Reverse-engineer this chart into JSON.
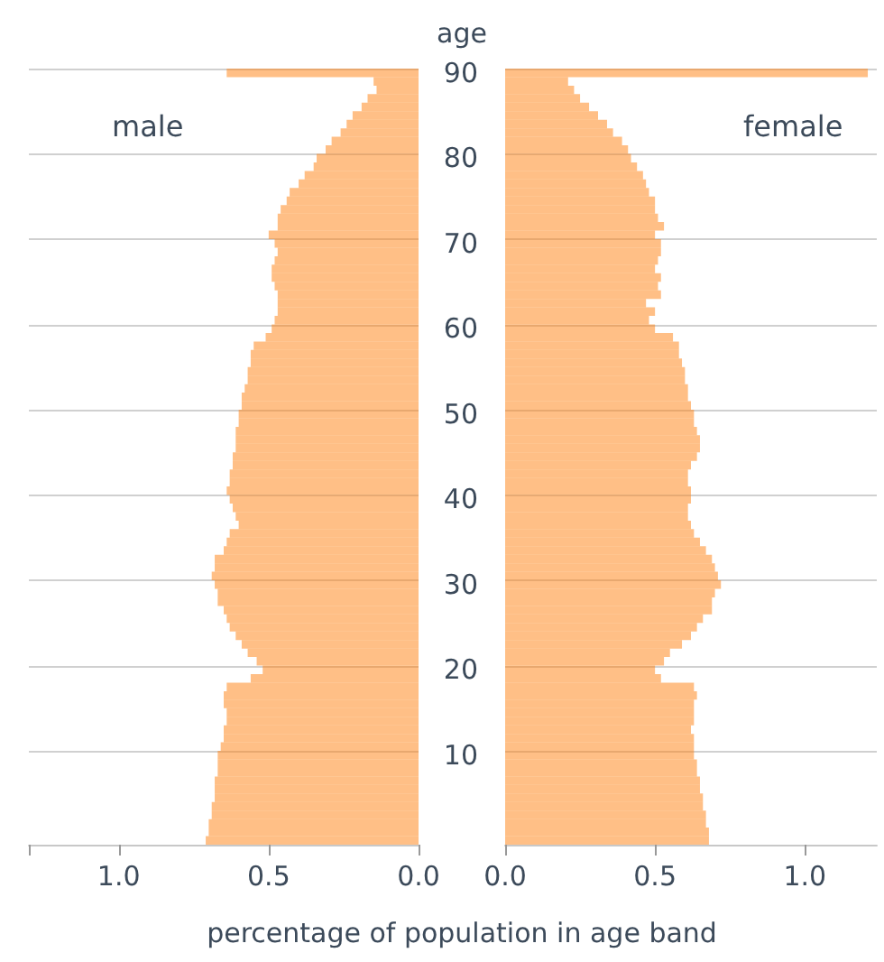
{
  "chart_data": [
    {
      "type": "bar",
      "orientation": "horizontal",
      "xlabel": "percentage of population in age band",
      "categories": [
        "90",
        null,
        null,
        null,
        null,
        null,
        null,
        null,
        null,
        null,
        "80",
        null,
        null,
        null,
        null,
        null,
        null,
        null,
        null,
        null,
        "70",
        null,
        null,
        null,
        null,
        null,
        null,
        null,
        null,
        null,
        "60",
        null,
        null,
        null,
        null,
        null,
        null,
        null,
        null,
        null,
        "50",
        null,
        null,
        null,
        null,
        null,
        null,
        null,
        null,
        null,
        "40",
        null,
        null,
        null,
        null,
        null,
        null,
        null,
        null,
        null,
        "30",
        null,
        null,
        null,
        null,
        null,
        null,
        null,
        null,
        null,
        "20",
        null,
        null,
        null,
        null,
        null,
        null,
        null,
        null,
        null,
        "10",
        null,
        null,
        null,
        null,
        null,
        null,
        null,
        null,
        null,
        null
      ],
      "series": [
        {
          "name": "male",
          "color": "#ff7f0e",
          "values": [
            0.64,
            0.15,
            0.14,
            0.17,
            0.19,
            0.22,
            0.24,
            0.26,
            0.29,
            0.31,
            0.34,
            0.35,
            0.38,
            0.4,
            0.43,
            0.44,
            0.46,
            0.47,
            0.47,
            0.5,
            0.48,
            0.47,
            0.48,
            0.49,
            0.49,
            0.48,
            0.47,
            0.47,
            0.47,
            0.48,
            0.49,
            0.51,
            0.55,
            0.56,
            0.56,
            0.57,
            0.57,
            0.58,
            0.59,
            0.59,
            0.6,
            0.6,
            0.61,
            0.61,
            0.61,
            0.62,
            0.62,
            0.63,
            0.63,
            0.64,
            0.63,
            0.62,
            0.61,
            0.6,
            0.63,
            0.64,
            0.65,
            0.68,
            0.68,
            0.69,
            0.68,
            0.67,
            0.67,
            0.65,
            0.64,
            0.63,
            0.61,
            0.59,
            0.57,
            0.54,
            0.52,
            0.56,
            0.64,
            0.65,
            0.65,
            0.64,
            0.64,
            0.65,
            0.65,
            0.66,
            0.67,
            0.67,
            0.67,
            0.68,
            0.68,
            0.68,
            0.69,
            0.69,
            0.7,
            0.7,
            0.71
          ]
        }
      ],
      "xlim": [
        1.3,
        0
      ],
      "xticks": [
        {
          "value": 1.3,
          "label": null
        },
        {
          "value": 1,
          "label": "1.0"
        },
        {
          "value": 0.5,
          "label": "0.5"
        },
        {
          "value": 0,
          "label": "0.0"
        }
      ],
      "grid": "y",
      "legend": false,
      "tick_labels": "x"
    },
    {
      "type": "bar",
      "orientation": "horizontal",
      "ylabel": "age",
      "categories": [
        "90",
        null,
        null,
        null,
        null,
        null,
        null,
        null,
        null,
        null,
        "80",
        null,
        null,
        null,
        null,
        null,
        null,
        null,
        null,
        null,
        "70",
        null,
        null,
        null,
        null,
        null,
        null,
        null,
        null,
        null,
        "60",
        null,
        null,
        null,
        null,
        null,
        null,
        null,
        null,
        null,
        "50",
        null,
        null,
        null,
        null,
        null,
        null,
        null,
        null,
        null,
        "40",
        null,
        null,
        null,
        null,
        null,
        null,
        null,
        null,
        null,
        "30",
        null,
        null,
        null,
        null,
        null,
        null,
        null,
        null,
        null,
        "20",
        null,
        null,
        null,
        null,
        null,
        null,
        null,
        null,
        null,
        "10",
        null,
        null,
        null,
        null,
        null,
        null,
        null,
        null,
        null,
        null
      ],
      "series": [
        {
          "name": "female",
          "color": "#ff7f0e",
          "values": [
            1.21,
            0.21,
            0.23,
            0.25,
            0.28,
            0.31,
            0.34,
            0.36,
            0.39,
            0.41,
            0.42,
            0.44,
            0.46,
            0.47,
            0.48,
            0.5,
            0.5,
            0.51,
            0.53,
            0.5,
            0.52,
            0.52,
            0.51,
            0.5,
            0.52,
            0.51,
            0.52,
            0.47,
            0.5,
            0.48,
            0.5,
            0.56,
            0.58,
            0.58,
            0.59,
            0.6,
            0.6,
            0.61,
            0.61,
            0.62,
            0.63,
            0.63,
            0.64,
            0.65,
            0.65,
            0.64,
            0.62,
            0.61,
            0.61,
            0.62,
            0.62,
            0.61,
            0.61,
            0.62,
            0.63,
            0.65,
            0.67,
            0.69,
            0.7,
            0.71,
            0.72,
            0.7,
            0.69,
            0.69,
            0.66,
            0.64,
            0.62,
            0.59,
            0.55,
            0.53,
            0.5,
            0.52,
            0.63,
            0.64,
            0.63,
            0.63,
            0.63,
            0.62,
            0.63,
            0.63,
            0.63,
            0.64,
            0.64,
            0.65,
            0.65,
            0.66,
            0.66,
            0.67,
            0.67,
            0.68,
            0.68
          ]
        }
      ],
      "xlim": [
        0,
        1.24
      ],
      "xticks": [
        {
          "value": 0,
          "label": "0.0"
        },
        {
          "value": 0.5,
          "label": "0.5"
        },
        {
          "value": 1,
          "label": "1.0"
        }
      ],
      "grid": "y",
      "legend": false
    }
  ]
}
